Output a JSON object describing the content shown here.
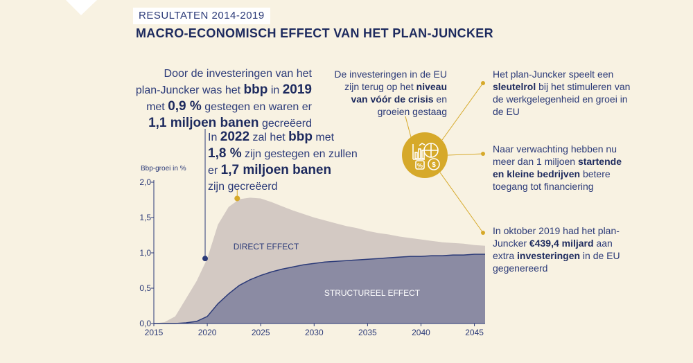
{
  "kicker": "RESULTATEN 2014-2019",
  "headline": "MACRO-ECONOMISCH EFFECT VAN HET PLAN-JUNCKER",
  "block2019": {
    "l1": "Door de investeringen van het",
    "l2a": "plan-Juncker was het ",
    "l2b": "bbp",
    "l2c": " in ",
    "l2d": "2019",
    "l3a": "met ",
    "l3b": "0,9 %",
    "l3c": " gestegen en waren er",
    "l4a": "1,1 miljoen banen",
    "l4b": " gecreëerd"
  },
  "block2022": {
    "l1a": "In ",
    "l1b": "2022",
    "l1c": " zal het ",
    "l1d": "bbp",
    "l1e": " met",
    "l2a": "1,8 %",
    "l2b": " zijn gestegen en zullen",
    "l3a": "er ",
    "l3b": "1,7 miljoen banen",
    "l4": "zijn gecreëerd"
  },
  "side": {
    "crisis": {
      "a": "De investeringen in de EU zijn terug op het ",
      "b": "niveau van vóór de crisis",
      "c": " en groeien gestaag"
    },
    "key": {
      "a": "Het plan-Juncker speelt een ",
      "b": "sleutelrol",
      "c": " bij het stimuleren van de werkgelegenheid en groei in de EU"
    },
    "sme": {
      "a": "Naar verwachting hebben nu meer dan 1 miljoen ",
      "b": "startende en kleine bedrijven",
      "c": " betere toegang tot financiering"
    },
    "invest": {
      "a": "In oktober 2019 had het plan-Juncker ",
      "b": "€439,4 miljard",
      "c": " aan extra ",
      "d": "investeringen",
      "e": " in de EU gegenereerd"
    }
  },
  "icon": {
    "name": "chart-money-icon",
    "color": "#d6a92a"
  },
  "colors": {
    "direct": "#d3c9c3",
    "structural": "#8b8ba3",
    "navy": "#2b3a78",
    "accent": "#d6a92a"
  },
  "chart_data": {
    "type": "area",
    "ylabel": "Bbp-groei in %",
    "xlim": [
      2015,
      2046
    ],
    "ylim": [
      0,
      2.0
    ],
    "x_ticks": [
      2015,
      2020,
      2025,
      2030,
      2035,
      2040,
      2045
    ],
    "x_tick_labels": [
      "2015",
      "2020",
      "2025",
      "2030",
      "2035",
      "2040",
      "2045"
    ],
    "y_ticks": [
      0,
      0.5,
      1.0,
      1.5,
      2.0
    ],
    "y_tick_labels": [
      "0,0",
      "0,5",
      "1,0",
      "1,5",
      "2,0"
    ],
    "x": [
      2015,
      2016,
      2017,
      2018,
      2019,
      2020,
      2021,
      2022,
      2023,
      2024,
      2025,
      2026,
      2027,
      2028,
      2029,
      2030,
      2031,
      2032,
      2033,
      2034,
      2035,
      2036,
      2037,
      2038,
      2039,
      2040,
      2041,
      2042,
      2043,
      2044,
      2045,
      2046
    ],
    "series": [
      {
        "name": "DIRECT EFFECT",
        "label": "DIRECT EFFECT",
        "values": [
          0.0,
          0.02,
          0.1,
          0.35,
          0.6,
          0.92,
          1.4,
          1.65,
          1.76,
          1.78,
          1.77,
          1.72,
          1.66,
          1.6,
          1.55,
          1.5,
          1.46,
          1.42,
          1.38,
          1.35,
          1.31,
          1.28,
          1.26,
          1.23,
          1.21,
          1.19,
          1.17,
          1.15,
          1.14,
          1.13,
          1.11,
          1.1
        ]
      },
      {
        "name": "STRUCTUREEL EFFECT",
        "label": "STRUCTUREEL EFFECT",
        "values": [
          0.0,
          0.0,
          0.0,
          0.01,
          0.03,
          0.1,
          0.28,
          0.42,
          0.54,
          0.62,
          0.68,
          0.73,
          0.77,
          0.8,
          0.83,
          0.85,
          0.87,
          0.88,
          0.89,
          0.9,
          0.91,
          0.92,
          0.93,
          0.94,
          0.95,
          0.95,
          0.96,
          0.96,
          0.97,
          0.97,
          0.98,
          0.98
        ]
      }
    ],
    "markers": [
      {
        "x": 2019.8,
        "y": 0.92
      },
      {
        "x": 2022.8,
        "y": 1.77
      }
    ]
  }
}
